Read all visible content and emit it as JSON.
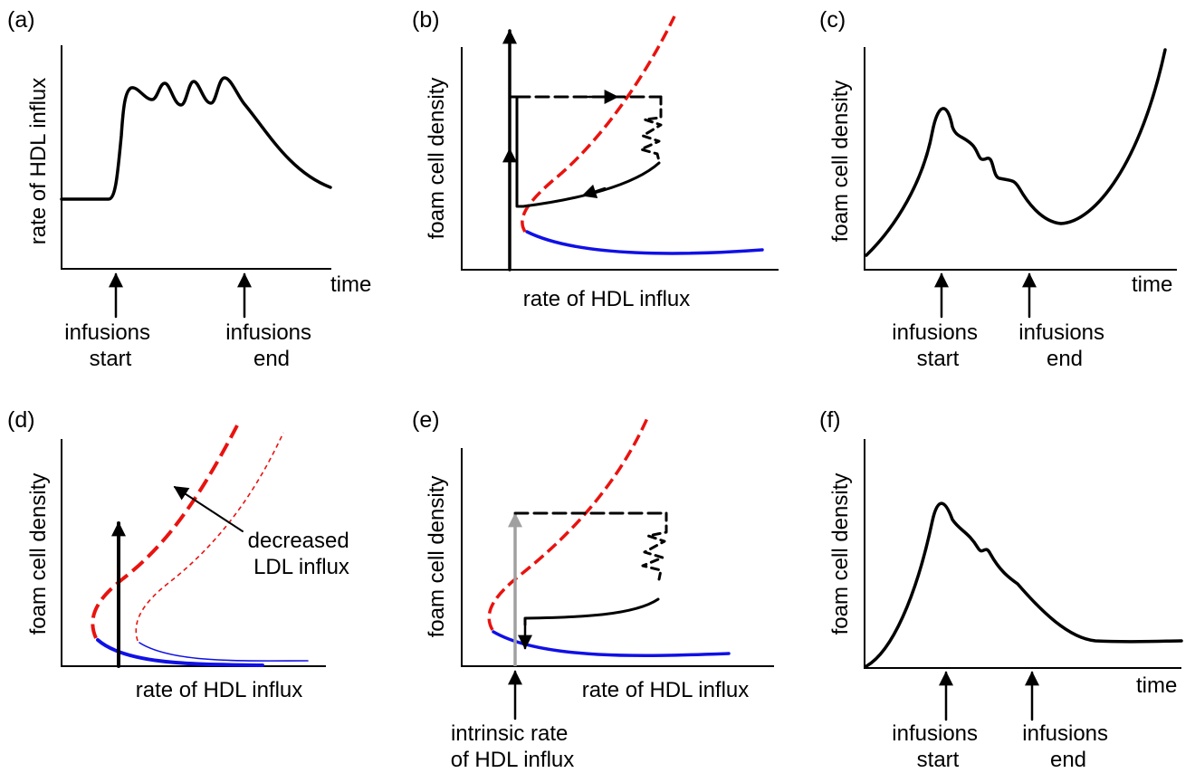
{
  "panels": {
    "a": {
      "label": "(a)",
      "ylabel": "rate of HDL influx",
      "xlabel": "time",
      "arrow_left": [
        "infusions",
        "start"
      ],
      "arrow_right": [
        "infusions",
        "end"
      ]
    },
    "b": {
      "label": "(b)",
      "ylabel": "foam cell density",
      "xlabel": "rate of HDL influx"
    },
    "c": {
      "label": "(c)",
      "ylabel": "foam cell density",
      "xlabel": "time",
      "arrow_left": [
        "infusions",
        "start"
      ],
      "arrow_right": [
        "infusions",
        "end"
      ]
    },
    "d": {
      "label": "(d)",
      "ylabel": "foam cell density",
      "xlabel": "rate of HDL influx",
      "annotation": [
        "decreased",
        "LDL influx"
      ]
    },
    "e": {
      "label": "(e)",
      "ylabel": "foam cell density",
      "xlabel": "rate of HDL influx",
      "annotation": [
        "intrinsic rate",
        "of HDL influx"
      ]
    },
    "f": {
      "label": "(f)",
      "ylabel": "foam cell density",
      "xlabel": "time",
      "arrow_left": [
        "infusions",
        "start"
      ],
      "arrow_right": [
        "infusions",
        "end"
      ]
    }
  },
  "colors": {
    "stable_branch": "#1010e6",
    "unstable_branch": "#e8130f",
    "trajectory": "#000000",
    "intrinsic_arrow": "#a0a0a0"
  }
}
